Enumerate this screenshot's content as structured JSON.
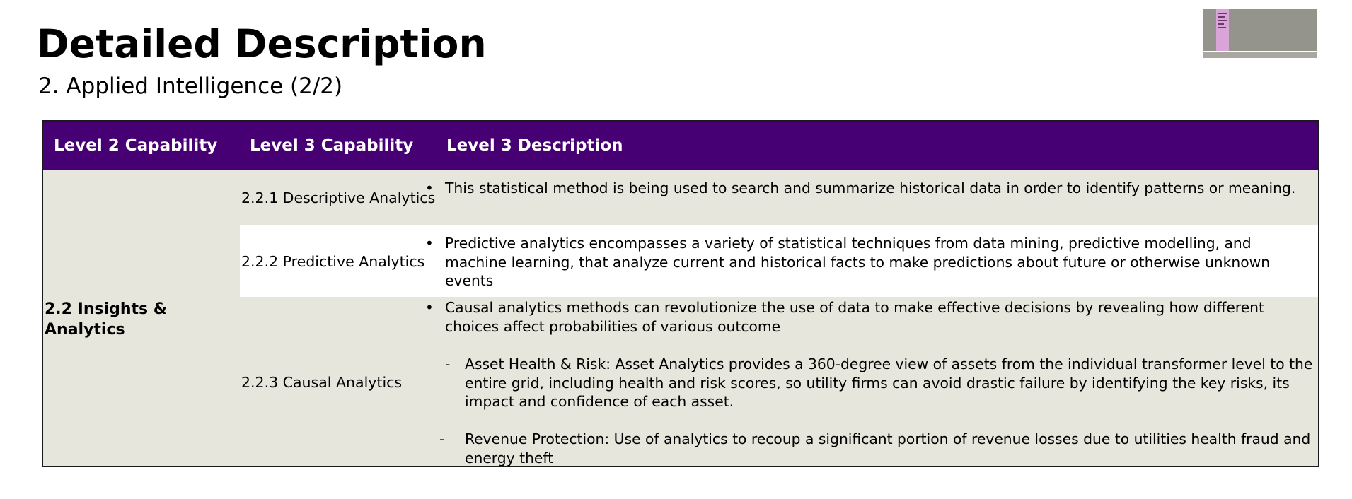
{
  "page": {
    "title": "Detailed Description",
    "subtitle": "2. Applied Intelligence (2/2)"
  },
  "table": {
    "headers": [
      "Level 2 Capability",
      "Level 3 Capability",
      "Level 3 Description"
    ],
    "level2": "2.2 Insights & Analytics",
    "rows": [
      {
        "level3": "2.2.1 Descriptive Analytics",
        "bullet": "•",
        "description": "This statistical method is being used to search and summarize historical data in order to identify patterns or meaning."
      },
      {
        "level3": "2.2.2 Predictive Analytics",
        "bullet": "•",
        "description": "Predictive analytics encompasses a variety of statistical techniques from data mining, predictive modelling, and machine learning, that analyze current and historical facts to make predictions about future or otherwise unknown events"
      },
      {
        "level3": "2.2.3 Causal Analytics",
        "bullet": "•",
        "description": "Causal analytics methods can revolutionize the use of data to make effective decisions by revealing how different choices affect probabilities of various outcome",
        "subitems": [
          {
            "marker": "-",
            "text": "Asset Health & Risk: Asset Analytics provides a 360-degree view of assets from the individual transformer level to the entire grid, including health and risk scores, so utility firms can avoid drastic failure by identifying the key risks, its impact and confidence of each asset."
          },
          {
            "marker": "-",
            "text": "Revenue Protection: Use of analytics to recoup a significant portion of revenue losses due to utilities health fraud and energy theft"
          }
        ]
      }
    ]
  },
  "colors": {
    "header_bg": "#460073",
    "row_shaded": "#e6e6dc",
    "row_white": "#ffffff"
  }
}
